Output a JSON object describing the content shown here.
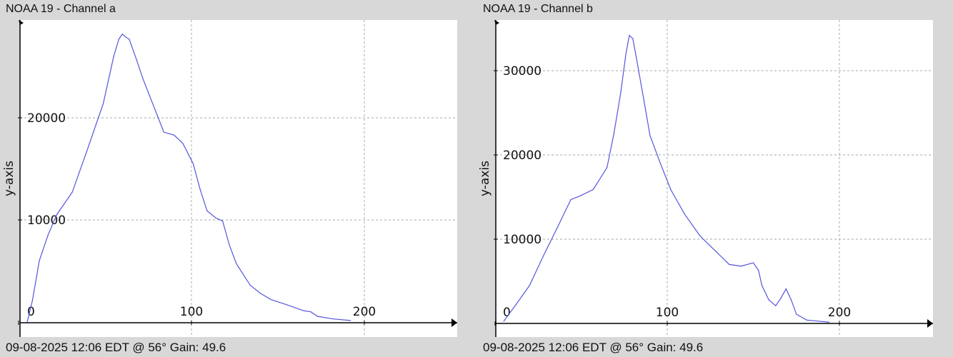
{
  "chart_data": [
    {
      "type": "line",
      "title": "NOAA 19 - Channel a",
      "ylabel": "y-axis",
      "xlabel": "",
      "xlim": [
        0,
        255
      ],
      "ylim": [
        0,
        29500
      ],
      "xticks": [
        0,
        100,
        200
      ],
      "yticks": [
        10000,
        20000
      ],
      "grid": true,
      "footer": "09-08-2025 12:06 EDT @ 56° Gain: 49.6",
      "color": "#5555dd",
      "x": [
        5,
        8,
        12,
        17,
        22,
        31,
        39,
        49,
        55,
        58,
        60,
        62,
        64,
        68,
        72,
        78,
        84,
        90,
        95,
        101,
        105,
        109,
        114,
        118,
        122,
        126,
        134,
        140,
        146,
        155,
        165,
        169,
        173,
        182,
        192
      ],
      "y": [
        0,
        2100,
        6000,
        8500,
        10500,
        12700,
        16500,
        21400,
        26000,
        27700,
        28200,
        27900,
        27700,
        25800,
        23800,
        21200,
        18600,
        18300,
        17500,
        15500,
        13000,
        10900,
        10200,
        9900,
        7500,
        5700,
        3600,
        2800,
        2200,
        1700,
        1100,
        1000,
        550,
        300,
        150
      ]
    },
    {
      "type": "line",
      "title": "NOAA 19 - Channel b",
      "ylabel": "y-axis",
      "xlabel": "",
      "xlim": [
        0,
        255
      ],
      "ylim": [
        0,
        35500
      ],
      "xticks": [
        0,
        100,
        200
      ],
      "yticks": [
        10000,
        20000,
        30000
      ],
      "grid": true,
      "footer": "09-08-2025 12:06 EDT @ 56° Gain: 49.6",
      "color": "#5555dd",
      "x": [
        5,
        12,
        20,
        28,
        36,
        44,
        50,
        57,
        65,
        69,
        73,
        76,
        78,
        80,
        82,
        86,
        90,
        96,
        102,
        110,
        119,
        128,
        136,
        143,
        150,
        153,
        155,
        159,
        163,
        166,
        169,
        172,
        175,
        181,
        194
      ],
      "y": [
        250,
        2200,
        4500,
        8000,
        11300,
        14700,
        15200,
        15900,
        18500,
        22500,
        27400,
        32000,
        34200,
        33800,
        31600,
        27000,
        22300,
        19000,
        15900,
        13000,
        10400,
        8600,
        7000,
        6800,
        7200,
        6300,
        4500,
        2800,
        2100,
        3000,
        4100,
        2800,
        1100,
        400,
        150
      ]
    }
  ]
}
